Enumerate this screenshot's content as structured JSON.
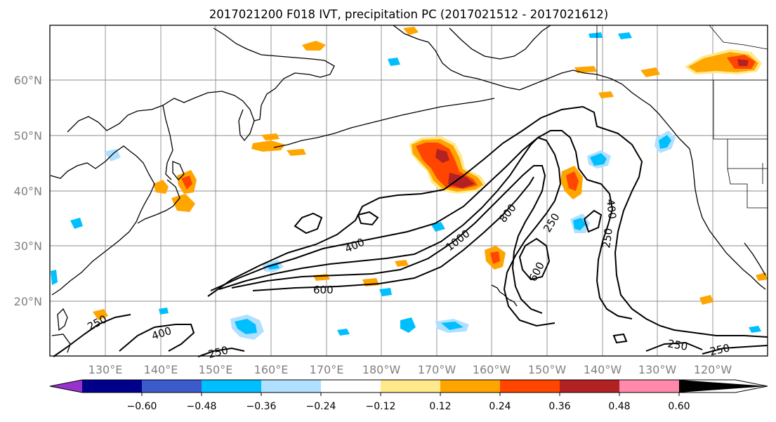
{
  "title": "2017021200 F018 IVT, precipitation PC (2017021512 - 2017021612)",
  "map": {
    "extent": {
      "lon_min": 120,
      "lon_max": 250,
      "lat_min": 10,
      "lat_max": 70
    },
    "lat_labels": [
      "60°N",
      "50°N",
      "40°N",
      "30°N",
      "20°N"
    ],
    "lon_labels": [
      "130°E",
      "140°E",
      "150°E",
      "160°E",
      "170°E",
      "180°W",
      "170°W",
      "160°W",
      "150°W",
      "140°W",
      "130°W",
      "120°W"
    ]
  },
  "contour_labels": [
    "250",
    "400",
    "250",
    "600",
    "400",
    "1000",
    "800",
    "250",
    "600",
    "400",
    "250",
    "250",
    "250"
  ],
  "colorbar": {
    "colors": [
      "#9932cc",
      "#00008b",
      "#3a5bc9",
      "#00bfff",
      "#b0e0ff",
      "#ffffff",
      "#ffe98a",
      "#ffa500",
      "#ff4500",
      "#b22222",
      "#ff89aa"
    ],
    "tick_labels": [
      "−0.60",
      "−0.48",
      "−0.36",
      "−0.24",
      "−0.12",
      "0.12",
      "0.24",
      "0.36",
      "0.48",
      "0.60"
    ]
  }
}
